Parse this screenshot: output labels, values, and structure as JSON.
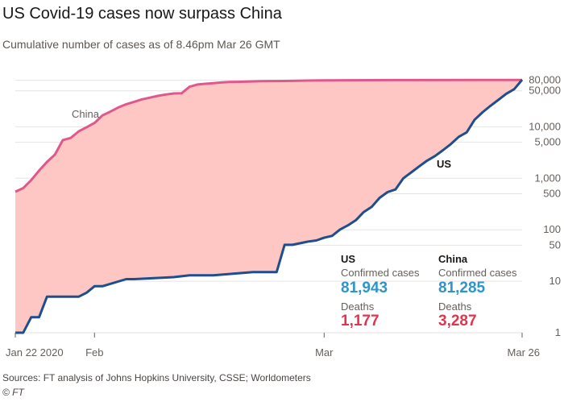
{
  "title": "US Covid-19 cases now surpass China",
  "subtitle": "Cumulative number of cases as of 8.46pm Mar 26 GMT",
  "source": "Sources: FT analysis of Johns Hopkins University, CSSE; Worldometers",
  "credit": "© FT",
  "colors": {
    "china": "#e0588b",
    "us": "#1f4e8f",
    "fill": "#ffc7c4",
    "confirmed": "#2f95c9",
    "deaths": "#e2344d",
    "grid": "#e6e2df"
  },
  "chart_data": {
    "type": "area",
    "x_ticks": [
      "Jan 22 2020",
      "Feb",
      "Mar",
      "Mar 26"
    ],
    "y_scale": "log",
    "y_ticks": [
      "1",
      "10",
      "50",
      "100",
      "500",
      "1,000",
      "5,000",
      "10,000",
      "50,000",
      "80,000"
    ],
    "y_tick_values": [
      1,
      10,
      50,
      100,
      500,
      1000,
      5000,
      10000,
      50000,
      80000
    ],
    "ylim": [
      1,
      85000
    ],
    "x_start": "2020-01-22",
    "x_end": "2020-03-26",
    "series": [
      {
        "name": "China",
        "dates": [
          "2020-01-22",
          "2020-01-23",
          "2020-01-24",
          "2020-01-25",
          "2020-01-26",
          "2020-01-27",
          "2020-01-28",
          "2020-01-29",
          "2020-01-30",
          "2020-01-31",
          "2020-02-01",
          "2020-02-02",
          "2020-02-03",
          "2020-02-04",
          "2020-02-05",
          "2020-02-06",
          "2020-02-07",
          "2020-02-08",
          "2020-02-09",
          "2020-02-10",
          "2020-02-11",
          "2020-02-12",
          "2020-02-13",
          "2020-02-14",
          "2020-02-15",
          "2020-02-16",
          "2020-02-17",
          "2020-02-18",
          "2020-02-19",
          "2020-02-20",
          "2020-02-22",
          "2020-02-25",
          "2020-03-01",
          "2020-03-10",
          "2020-03-20",
          "2020-03-26"
        ],
        "values": [
          548,
          643,
          920,
          1406,
          2075,
          2877,
          5509,
          6087,
          8141,
          9802,
          11891,
          16630,
          19716,
          23707,
          27440,
          30587,
          34110,
          36814,
          39829,
          42354,
          44386,
          44759,
          59895,
          66358,
          68413,
          70513,
          72434,
          74211,
          74619,
          75077,
          76936,
          77754,
          79932,
          80778,
          81250,
          81285
        ]
      },
      {
        "name": "US",
        "dates": [
          "2020-01-22",
          "2020-01-23",
          "2020-01-24",
          "2020-01-25",
          "2020-01-26",
          "2020-01-30",
          "2020-01-31",
          "2020-02-01",
          "2020-02-02",
          "2020-02-05",
          "2020-02-06",
          "2020-02-11",
          "2020-02-13",
          "2020-02-16",
          "2020-02-21",
          "2020-02-24",
          "2020-02-25",
          "2020-02-26",
          "2020-02-28",
          "2020-02-29",
          "2020-03-01",
          "2020-03-02",
          "2020-03-03",
          "2020-03-04",
          "2020-03-05",
          "2020-03-06",
          "2020-03-07",
          "2020-03-08",
          "2020-03-09",
          "2020-03-10",
          "2020-03-11",
          "2020-03-12",
          "2020-03-13",
          "2020-03-14",
          "2020-03-15",
          "2020-03-16",
          "2020-03-17",
          "2020-03-18",
          "2020-03-19",
          "2020-03-20",
          "2020-03-21",
          "2020-03-22",
          "2020-03-23",
          "2020-03-24",
          "2020-03-25",
          "2020-03-26"
        ],
        "values": [
          1,
          1,
          2,
          2,
          5,
          5,
          6,
          8,
          8,
          11,
          11,
          12,
          13,
          13,
          15,
          15,
          51,
          51,
          59,
          62,
          70,
          76,
          101,
          122,
          153,
          221,
          278,
          417,
          537,
          605,
          1000,
          1300,
          1700,
          2200,
          2700,
          3500,
          4600,
          6400,
          7800,
          13700,
          19100,
          25500,
          33300,
          43800,
          53700,
          81943
        ]
      }
    ],
    "annotations": [
      {
        "label": "China",
        "series": "China"
      },
      {
        "label": "US",
        "series": "US"
      }
    ],
    "stats": [
      {
        "country": "US",
        "confirmed_label": "Confirmed cases",
        "confirmed": "81,943",
        "deaths_label": "Deaths",
        "deaths": "1,177"
      },
      {
        "country": "China",
        "confirmed_label": "Confirmed cases",
        "confirmed": "81,285",
        "deaths_label": "Deaths",
        "deaths": "3,287"
      }
    ]
  }
}
